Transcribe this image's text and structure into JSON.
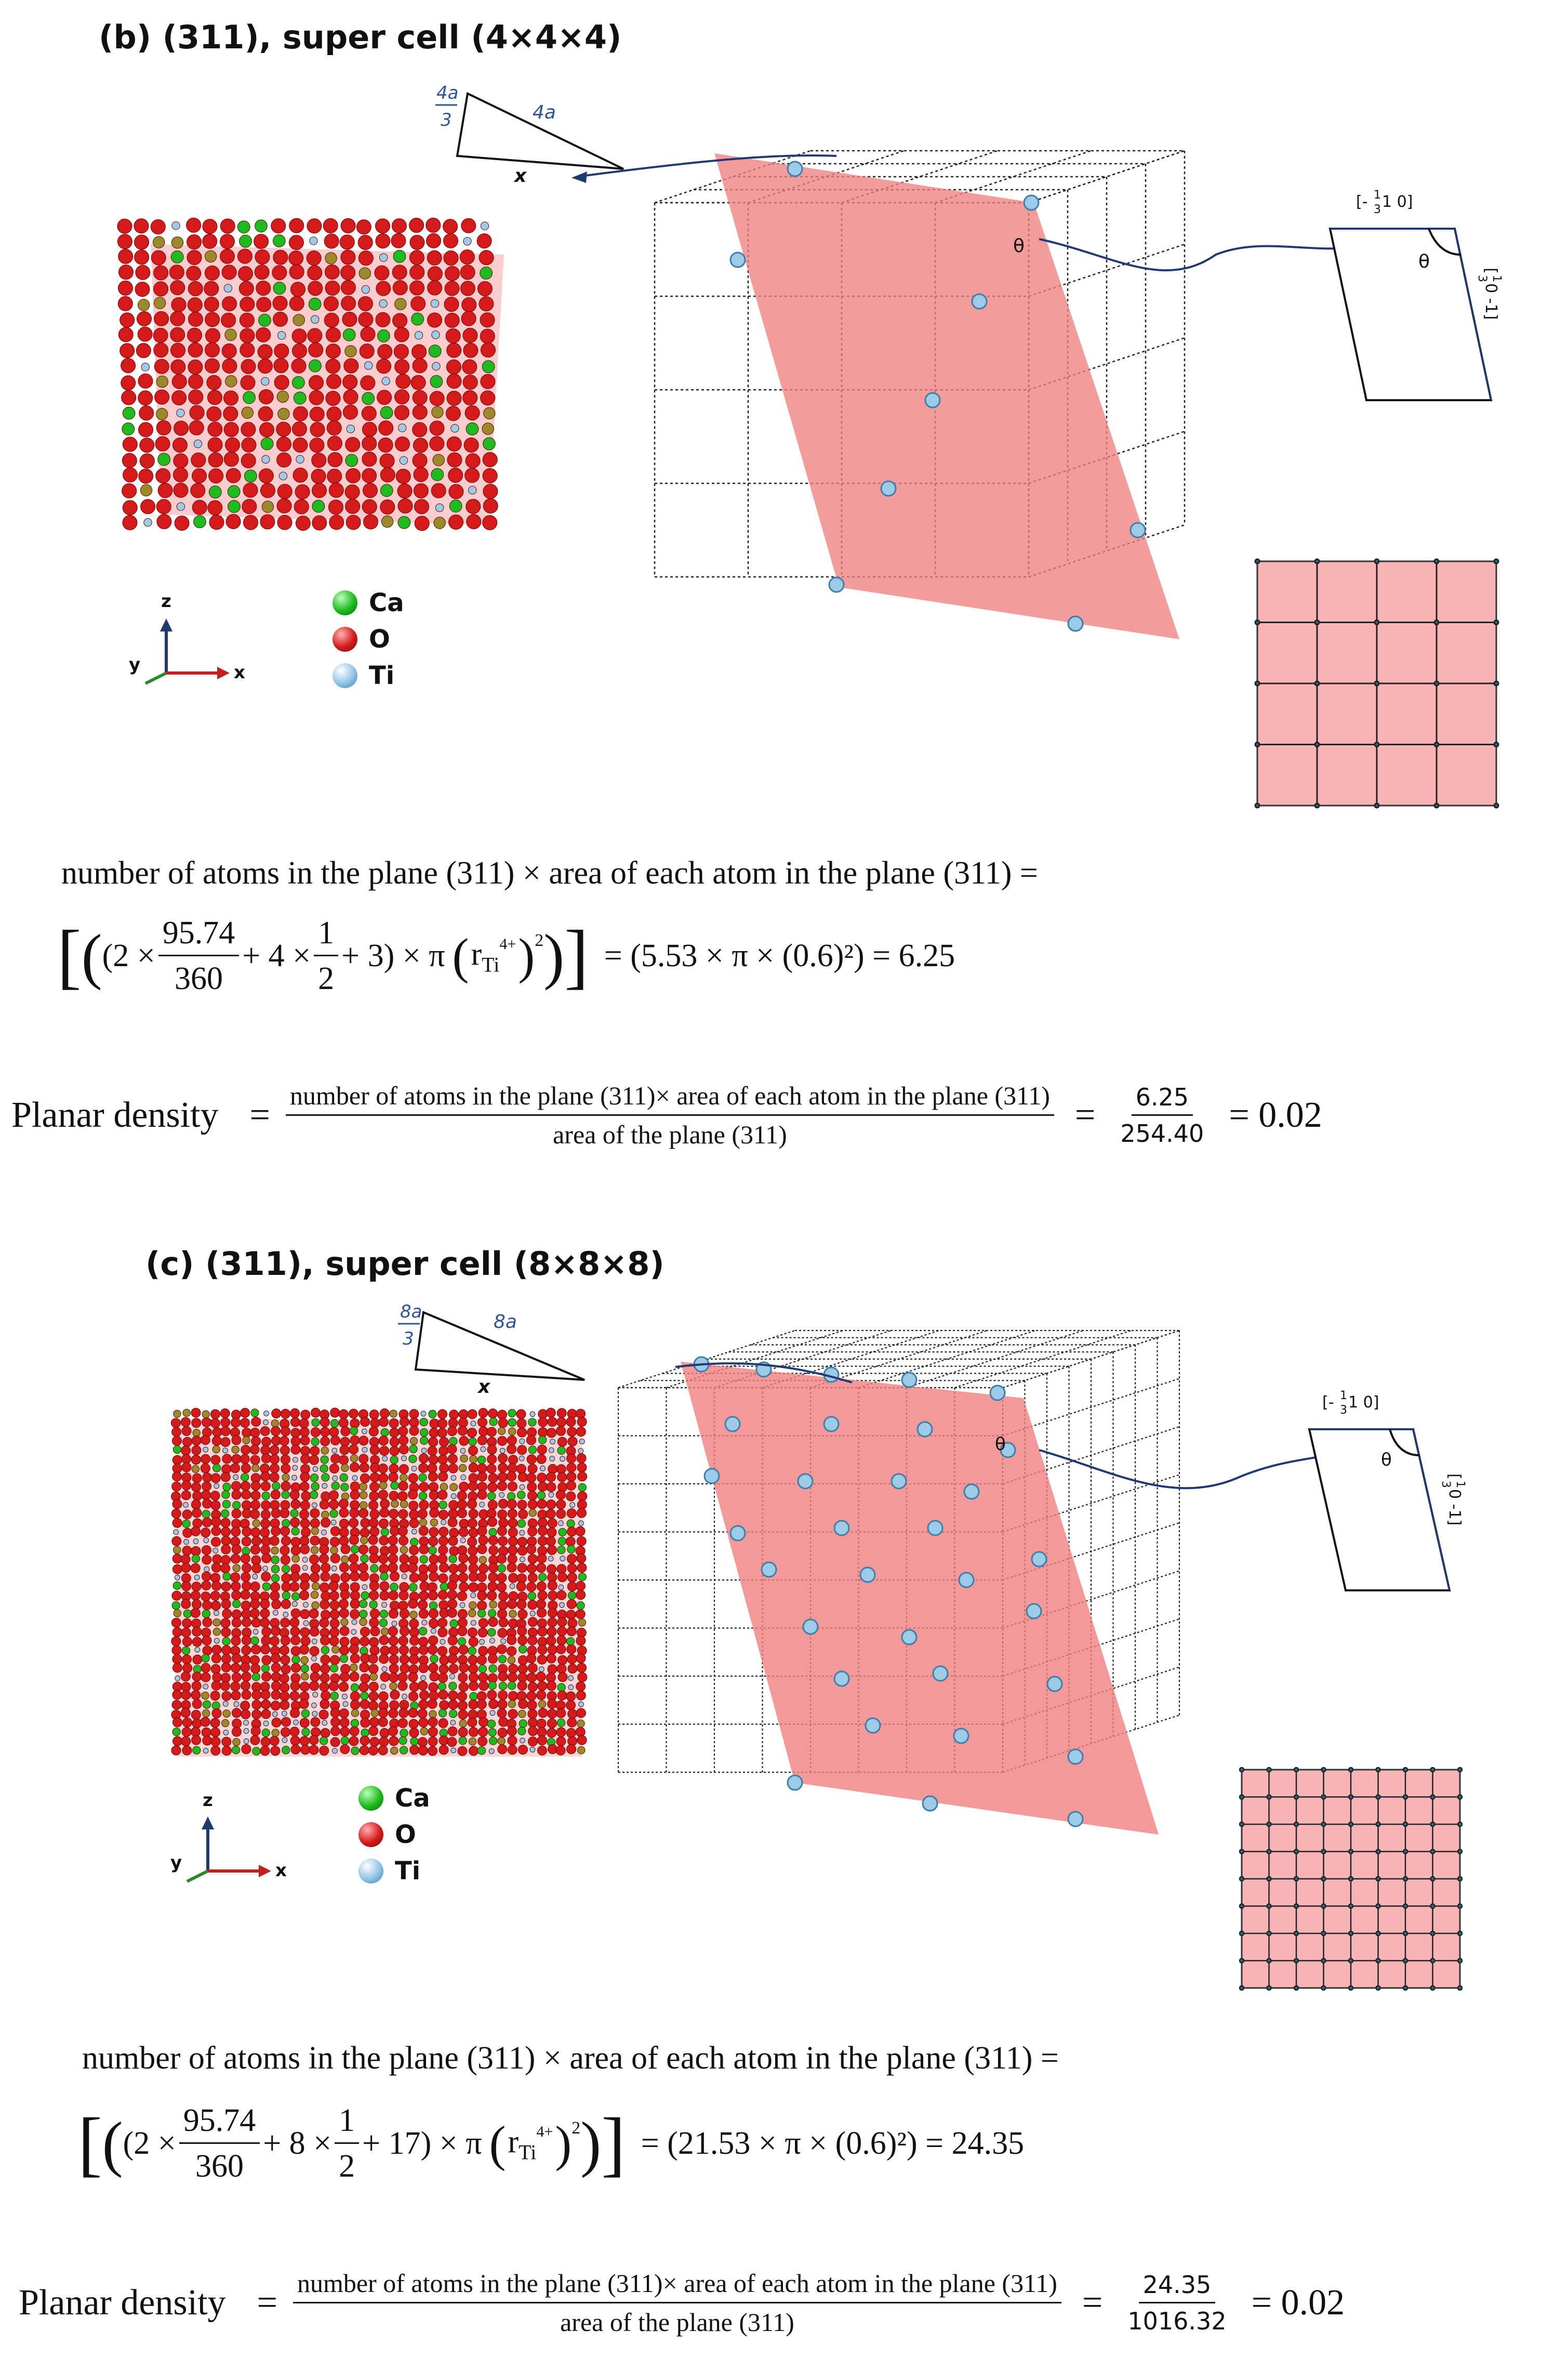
{
  "panel_b": {
    "title": "(b) (311), super cell (4×4×4)",
    "triangle": {
      "side_short": "4a",
      "side_short_den": "3",
      "side_long": "4a",
      "base": "x"
    },
    "theta": "θ",
    "inset_labels": {
      "top": "[-1/3 1 0]",
      "top_parts": [
        "[-",
        "1",
        "3",
        " 1 0]"
      ],
      "side": "[1/3 0 -1]",
      "side_parts": [
        "[",
        "1",
        "3",
        " 0 -1]"
      ],
      "angle": "θ"
    },
    "axes": {
      "z": "z",
      "y": "y",
      "x": "x"
    },
    "legend": [
      "Ca",
      "O",
      "Ti"
    ],
    "eq1": "number of atoms in the plane (311) × area of each atom in the plane (311) =",
    "eq2": {
      "open": "(2 ×",
      "f1_num": "95.74",
      "f1_den": "360",
      "mid": "+ 4 ×",
      "f2_num": "1",
      "f2_den": "2",
      "tail": "+ 3) × π",
      "r": "r",
      "sub": "Ti",
      "sup": "4+",
      "exp": "2",
      "result": "= (5.53 × π × (0.6)²) = 6.25"
    },
    "eq3": {
      "label": "Planar density",
      "eq": "=",
      "num": "number of atoms in the plane (311)× area of each atom in the plane (311)",
      "den": "area of the plane (311)",
      "eq2": "=",
      "v_num": "6.25",
      "v_den": "254.40",
      "result": "= 0.02"
    }
  },
  "panel_c": {
    "title": "(c) (311), super cell (8×8×8)",
    "triangle": {
      "side_short": "8a",
      "side_short_den": "3",
      "side_long": "8a",
      "base": "x"
    },
    "theta": "θ",
    "inset_labels": {
      "top": "[-1/3 1 0]",
      "top_parts": [
        "[-",
        "1",
        "3",
        " 1 0]"
      ],
      "side": "[1/3 0 -1]",
      "side_parts": [
        "[",
        "1",
        "3",
        " 0 -1]"
      ],
      "angle": "θ"
    },
    "axes": {
      "z": "z",
      "y": "y",
      "x": "x"
    },
    "legend": [
      "Ca",
      "O",
      "Ti"
    ],
    "eq1": "number of atoms in the plane (311) × area of each atom in the plane (311) =",
    "eq2": {
      "open": "(2 ×",
      "f1_num": "95.74",
      "f1_den": "360",
      "mid": "+ 8 ×",
      "f2_num": "1",
      "f2_den": "2",
      "tail": "+ 17) × π",
      "r": "r",
      "sub": "Ti",
      "sup": "4+",
      "exp": "2",
      "result": "= (21.53 × π × (0.6)²) = 24.35"
    },
    "eq3": {
      "label": "Planar density",
      "eq": "=",
      "num": "number of atoms in the plane (311)× area of each atom in the plane (311)",
      "den": "area of the plane (311)",
      "eq2": "=",
      "v_num": "24.35",
      "v_den": "1016.32",
      "result": "= 0.02"
    }
  },
  "colors": {
    "plane": "#f08080",
    "grid": "#333333",
    "ti": "#8fc4e6",
    "o": "#d41a1a",
    "ca": "#1dbb1d",
    "arrow": "#1f3a6e"
  }
}
